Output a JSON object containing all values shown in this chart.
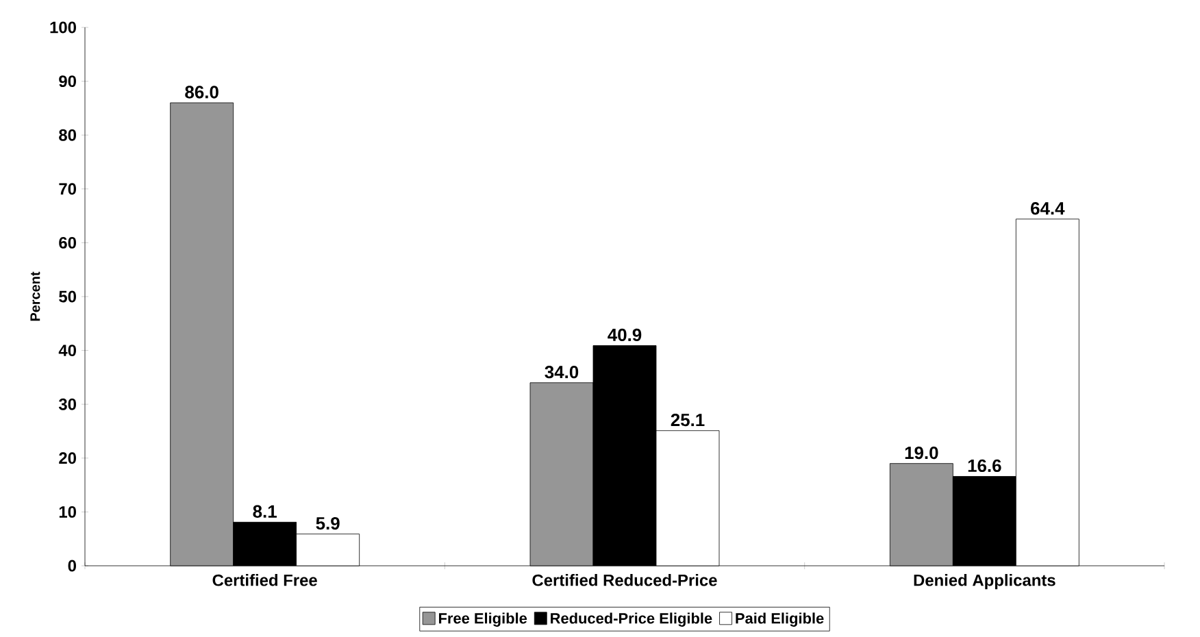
{
  "chart_data": {
    "type": "bar",
    "ylabel": "Percent",
    "categories": [
      "Certified Free",
      "Certified Reduced-Price",
      "Denied Applicants"
    ],
    "series": [
      {
        "name": "Free Eligible",
        "color": "#969696",
        "values": [
          86.0,
          34.0,
          19.0
        ],
        "value_labels": [
          "86.0",
          "34.0",
          "19.0"
        ]
      },
      {
        "name": "Reduced-Price Eligible",
        "color": "#000000",
        "values": [
          8.1,
          40.9,
          16.6
        ],
        "value_labels": [
          "8.1",
          "40.9",
          "16.6"
        ]
      },
      {
        "name": "Paid Eligible",
        "color": "#ffffff",
        "values": [
          5.9,
          25.1,
          64.4
        ],
        "value_labels": [
          "5.9",
          "25.1",
          "64.4"
        ]
      }
    ],
    "ylim": [
      0,
      100
    ],
    "yticks": [
      0,
      10,
      20,
      30,
      40,
      50,
      60,
      70,
      80,
      90,
      100
    ],
    "legend": "bottom"
  }
}
